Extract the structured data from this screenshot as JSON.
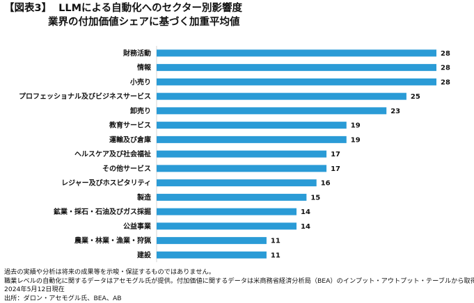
{
  "title": {
    "figure_label": "【図表3】",
    "line1": "LLMによる自動化へのセクター別影響度",
    "line2": "業界の付加価値シェアに基づく加重平均値"
  },
  "chart_data": {
    "type": "bar",
    "orientation": "horizontal",
    "bar_color": "#2a9bd6",
    "categories": [
      "財務活動",
      "情報",
      "小売り",
      "プロフェッショナル及びビジネスサービス",
      "卸売り",
      "教育サービス",
      "運輸及び倉庫",
      "ヘルスケア及び社会福祉",
      "その他サービス",
      "レジャー及びホスピタリティ",
      "製造",
      "鉱業・採石・石油及びガス採掘",
      "公益事業",
      "農業・林業・漁業・狩猟",
      "建設"
    ],
    "values": [
      28,
      28,
      28,
      25,
      23,
      19,
      19,
      17,
      17,
      16,
      15,
      14,
      14,
      11,
      11
    ],
    "xlim": [
      0,
      28
    ],
    "grid": false,
    "data_labels": true
  },
  "footnotes": [
    "過去の実績や分析は将来の成果等を示唆・保証するものではありません。",
    "職業レベルの自動化に関するデータはアセモグル氏が提供。付加価値に関するデータは米商務省経済分析局（BEA）のインプット・アウトプット・テーブルから取得。",
    "2024年5月12日現在",
    "出所：ダロン・アセモグル氏、BEA、AB"
  ]
}
